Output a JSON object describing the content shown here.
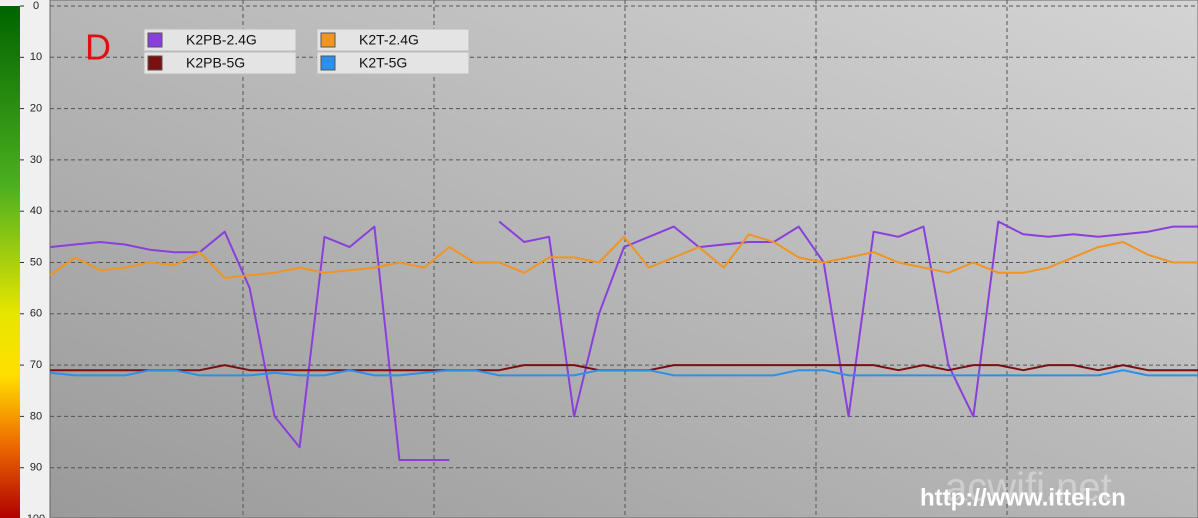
{
  "chart_data": {
    "type": "line",
    "annotation": "D",
    "watermarks": [
      "acwifi.net",
      "http://www.ittel.cn"
    ],
    "ylim": [
      0,
      100
    ],
    "y_inverted": true,
    "yticks": [
      0,
      10,
      20,
      30,
      40,
      50,
      60,
      70,
      80,
      90,
      100
    ],
    "grid": true,
    "categories": [
      null,
      null,
      null,
      null,
      null,
      null,
      null,
      null,
      null,
      null,
      null,
      null,
      null,
      null,
      null,
      null,
      null,
      null,
      null,
      null,
      null,
      null,
      null,
      null,
      null,
      null,
      null,
      null,
      null,
      null,
      null,
      null,
      null,
      null,
      null,
      null,
      null,
      null,
      null,
      null,
      null,
      null,
      null,
      null,
      null,
      null,
      null
    ],
    "series": [
      {
        "name": "K2PB-2.4G",
        "color": "#8a3fdc",
        "values": [
          47,
          46.5,
          46,
          46.5,
          47.5,
          48,
          48,
          44,
          55,
          80,
          86,
          45,
          47,
          43,
          88.5,
          88.5,
          88.5,
          null,
          42,
          46,
          45,
          80,
          60,
          47,
          45,
          43,
          47,
          46.5,
          46,
          46,
          43,
          50,
          80,
          44,
          45,
          43,
          70,
          80,
          42,
          44.5,
          45,
          44.5,
          45,
          44.5,
          44,
          43,
          43
        ]
      },
      {
        "name": "K2PB-5G",
        "color": "#7a1010",
        "values": [
          71,
          71,
          71,
          71,
          71,
          71,
          71,
          70,
          71,
          71,
          71,
          71,
          71,
          71,
          71,
          71,
          71,
          71,
          71,
          70,
          70,
          70,
          71,
          71,
          71,
          70,
          70,
          70,
          70,
          70,
          70,
          70,
          70,
          70,
          71,
          70,
          71,
          70,
          70,
          71,
          70,
          70,
          71,
          70,
          71,
          71,
          71
        ]
      },
      {
        "name": "K2T-2.4G",
        "color": "#f0951f",
        "values": [
          52.5,
          49,
          51.5,
          51,
          50,
          50.5,
          48,
          53,
          52.5,
          52,
          51,
          52,
          51.5,
          51,
          50,
          51,
          47,
          50,
          50,
          52,
          49,
          49,
          50,
          45,
          51,
          49,
          47,
          51,
          44.5,
          46,
          49,
          50,
          49,
          48,
          50,
          51,
          52,
          50,
          52,
          52,
          51,
          49,
          47,
          46,
          48.5,
          50,
          50
        ]
      },
      {
        "name": "K2T-5G",
        "color": "#2b90ea",
        "values": [
          71.5,
          72,
          72,
          72,
          71,
          71,
          72,
          72,
          72,
          71.5,
          72,
          72,
          71,
          72,
          72,
          71.5,
          71,
          71,
          72,
          72,
          72,
          72,
          71,
          71,
          71,
          72,
          72,
          72,
          72,
          72,
          71,
          71,
          72,
          72,
          72,
          72,
          72,
          72,
          72,
          72,
          72,
          72,
          72,
          71,
          72,
          72,
          72
        ]
      }
    ],
    "legend": "upper-left"
  }
}
